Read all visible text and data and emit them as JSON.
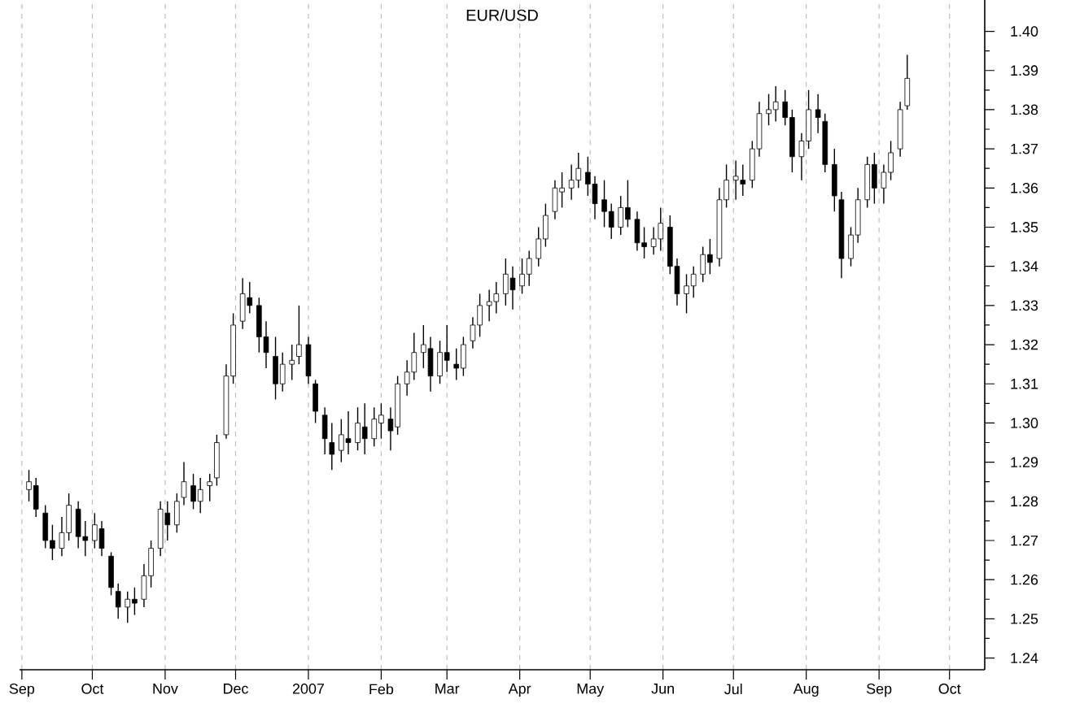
{
  "chart_data": {
    "type": "candlestick",
    "title": "EUR/USD",
    "color": "#000000",
    "grid": "x",
    "xlim": [
      "2006-08-31",
      "2007-10-16"
    ],
    "ylim": [
      1.237,
      1.408
    ],
    "xticks": [
      {
        "value": "2006-09-01",
        "label": "Sep"
      },
      {
        "value": "2006-10-01",
        "label": "Oct"
      },
      {
        "value": "2006-11-01",
        "label": "Nov"
      },
      {
        "value": "2006-12-01",
        "label": "Dec"
      },
      {
        "value": "2007-01-01",
        "label": "2007"
      },
      {
        "value": "2007-02-01",
        "label": "Feb"
      },
      {
        "value": "2007-03-01",
        "label": "Mar"
      },
      {
        "value": "2007-04-01",
        "label": "Apr"
      },
      {
        "value": "2007-05-01",
        "label": "May"
      },
      {
        "value": "2007-06-01",
        "label": "Jun"
      },
      {
        "value": "2007-07-01",
        "label": "Jul"
      },
      {
        "value": "2007-08-01",
        "label": "Aug"
      },
      {
        "value": "2007-09-01",
        "label": "Sep"
      },
      {
        "value": "2007-10-01",
        "label": "Oct"
      }
    ],
    "yticks": [
      {
        "value": 1.24,
        "label": "1.24"
      },
      {
        "value": 1.25,
        "label": "1.25"
      },
      {
        "value": 1.26,
        "label": "1.26"
      },
      {
        "value": 1.27,
        "label": "1.27"
      },
      {
        "value": 1.28,
        "label": "1.28"
      },
      {
        "value": 1.29,
        "label": "1.29"
      },
      {
        "value": 1.3,
        "label": "1.30"
      },
      {
        "value": 1.31,
        "label": "1.31"
      },
      {
        "value": 1.32,
        "label": "1.32"
      },
      {
        "value": 1.33,
        "label": "1.33"
      },
      {
        "value": 1.34,
        "label": "1.34"
      },
      {
        "value": 1.35,
        "label": "1.35"
      },
      {
        "value": 1.36,
        "label": "1.36"
      },
      {
        "value": 1.37,
        "label": "1.37"
      },
      {
        "value": 1.38,
        "label": "1.38"
      },
      {
        "value": 1.39,
        "label": "1.39"
      },
      {
        "value": 1.4,
        "label": "1.40"
      }
    ],
    "x": [
      "2006-09-04",
      "2006-09-07",
      "2006-09-11",
      "2006-09-14",
      "2006-09-18",
      "2006-09-21",
      "2006-09-25",
      "2006-09-28",
      "2006-10-02",
      "2006-10-05",
      "2006-10-09",
      "2006-10-12",
      "2006-10-16",
      "2006-10-19",
      "2006-10-23",
      "2006-10-26",
      "2006-10-30",
      "2006-11-02",
      "2006-11-06",
      "2006-11-09",
      "2006-11-13",
      "2006-11-16",
      "2006-11-20",
      "2006-11-23",
      "2006-11-27",
      "2006-11-30",
      "2006-12-04",
      "2006-12-07",
      "2006-12-11",
      "2006-12-14",
      "2006-12-18",
      "2006-12-21",
      "2006-12-25",
      "2006-12-28",
      "2007-01-01",
      "2007-01-04",
      "2007-01-08",
      "2007-01-11",
      "2007-01-15",
      "2007-01-18",
      "2007-01-22",
      "2007-01-25",
      "2007-01-29",
      "2007-02-01",
      "2007-02-05",
      "2007-02-08",
      "2007-02-12",
      "2007-02-15",
      "2007-02-19",
      "2007-02-22",
      "2007-02-26",
      "2007-03-01",
      "2007-03-05",
      "2007-03-08",
      "2007-03-12",
      "2007-03-15",
      "2007-03-19",
      "2007-03-22",
      "2007-03-26",
      "2007-03-29",
      "2007-04-02",
      "2007-04-05",
      "2007-04-09",
      "2007-04-12",
      "2007-04-16",
      "2007-04-19",
      "2007-04-23",
      "2007-04-26",
      "2007-04-30",
      "2007-05-03",
      "2007-05-07",
      "2007-05-10",
      "2007-05-14",
      "2007-05-17",
      "2007-05-21",
      "2007-05-24",
      "2007-05-28",
      "2007-05-31",
      "2007-06-04",
      "2007-06-07",
      "2007-06-11",
      "2007-06-14",
      "2007-06-18",
      "2007-06-21",
      "2007-06-25",
      "2007-06-28",
      "2007-07-02",
      "2007-07-05",
      "2007-07-09",
      "2007-07-12",
      "2007-07-16",
      "2007-07-19",
      "2007-07-23",
      "2007-07-26",
      "2007-07-30",
      "2007-08-02",
      "2007-08-06",
      "2007-08-09",
      "2007-08-13",
      "2007-08-16",
      "2007-08-20",
      "2007-08-23",
      "2007-08-27",
      "2007-08-30",
      "2007-09-03",
      "2007-09-06",
      "2007-09-10",
      "2007-09-13"
    ],
    "ohlc": [
      [
        1.283,
        1.288,
        1.28,
        1.285
      ],
      [
        1.284,
        1.286,
        1.276,
        1.278
      ],
      [
        1.277,
        1.279,
        1.268,
        1.27
      ],
      [
        1.27,
        1.274,
        1.265,
        1.268
      ],
      [
        1.268,
        1.276,
        1.266,
        1.272
      ],
      [
        1.272,
        1.282,
        1.27,
        1.279
      ],
      [
        1.278,
        1.28,
        1.268,
        1.271
      ],
      [
        1.271,
        1.275,
        1.266,
        1.27
      ],
      [
        1.27,
        1.277,
        1.268,
        1.274
      ],
      [
        1.273,
        1.275,
        1.266,
        1.268
      ],
      [
        1.266,
        1.267,
        1.256,
        1.258
      ],
      [
        1.257,
        1.259,
        1.25,
        1.253
      ],
      [
        1.253,
        1.257,
        1.249,
        1.255
      ],
      [
        1.255,
        1.258,
        1.251,
        1.254
      ],
      [
        1.255,
        1.264,
        1.253,
        1.261
      ],
      [
        1.261,
        1.27,
        1.258,
        1.268
      ],
      [
        1.268,
        1.28,
        1.266,
        1.278
      ],
      [
        1.277,
        1.28,
        1.27,
        1.274
      ],
      [
        1.274,
        1.282,
        1.272,
        1.28
      ],
      [
        1.281,
        1.29,
        1.279,
        1.285
      ],
      [
        1.284,
        1.287,
        1.278,
        1.28
      ],
      [
        1.28,
        1.286,
        1.277,
        1.283
      ],
      [
        1.284,
        1.287,
        1.28,
        1.285
      ],
      [
        1.286,
        1.297,
        1.284,
        1.295
      ],
      [
        1.297,
        1.315,
        1.296,
        1.312
      ],
      [
        1.312,
        1.328,
        1.31,
        1.325
      ],
      [
        1.326,
        1.337,
        1.324,
        1.333
      ],
      [
        1.332,
        1.336,
        1.328,
        1.33
      ],
      [
        1.33,
        1.332,
        1.318,
        1.322
      ],
      [
        1.322,
        1.326,
        1.314,
        1.318
      ],
      [
        1.317,
        1.322,
        1.306,
        1.31
      ],
      [
        1.31,
        1.318,
        1.308,
        1.315
      ],
      [
        1.315,
        1.32,
        1.311,
        1.316
      ],
      [
        1.317,
        1.33,
        1.315,
        1.32
      ],
      [
        1.32,
        1.322,
        1.31,
        1.312
      ],
      [
        1.31,
        1.311,
        1.3,
        1.303
      ],
      [
        1.302,
        1.304,
        1.292,
        1.296
      ],
      [
        1.295,
        1.3,
        1.288,
        1.292
      ],
      [
        1.293,
        1.301,
        1.29,
        1.297
      ],
      [
        1.296,
        1.303,
        1.292,
        1.295
      ],
      [
        1.295,
        1.304,
        1.293,
        1.3
      ],
      [
        1.299,
        1.305,
        1.292,
        1.296
      ],
      [
        1.296,
        1.304,
        1.294,
        1.301
      ],
      [
        1.3,
        1.305,
        1.296,
        1.302
      ],
      [
        1.301,
        1.304,
        1.293,
        1.298
      ],
      [
        1.299,
        1.312,
        1.297,
        1.31
      ],
      [
        1.31,
        1.316,
        1.307,
        1.313
      ],
      [
        1.313,
        1.323,
        1.311,
        1.318
      ],
      [
        1.318,
        1.325,
        1.314,
        1.32
      ],
      [
        1.319,
        1.322,
        1.308,
        1.312
      ],
      [
        1.312,
        1.321,
        1.31,
        1.318
      ],
      [
        1.318,
        1.325,
        1.313,
        1.316
      ],
      [
        1.315,
        1.319,
        1.311,
        1.314
      ],
      [
        1.314,
        1.322,
        1.312,
        1.32
      ],
      [
        1.321,
        1.327,
        1.319,
        1.325
      ],
      [
        1.325,
        1.333,
        1.322,
        1.33
      ],
      [
        1.33,
        1.334,
        1.326,
        1.331
      ],
      [
        1.331,
        1.336,
        1.328,
        1.333
      ],
      [
        1.333,
        1.342,
        1.33,
        1.338
      ],
      [
        1.337,
        1.34,
        1.329,
        1.334
      ],
      [
        1.335,
        1.342,
        1.333,
        1.338
      ],
      [
        1.338,
        1.344,
        1.335,
        1.342
      ],
      [
        1.342,
        1.35,
        1.34,
        1.347
      ],
      [
        1.347,
        1.356,
        1.345,
        1.353
      ],
      [
        1.354,
        1.362,
        1.352,
        1.36
      ],
      [
        1.359,
        1.364,
        1.355,
        1.36
      ],
      [
        1.36,
        1.366,
        1.357,
        1.362
      ],
      [
        1.362,
        1.369,
        1.36,
        1.365
      ],
      [
        1.364,
        1.368,
        1.358,
        1.361
      ],
      [
        1.361,
        1.363,
        1.352,
        1.356
      ],
      [
        1.357,
        1.362,
        1.35,
        1.354
      ],
      [
        1.354,
        1.356,
        1.347,
        1.35
      ],
      [
        1.35,
        1.358,
        1.348,
        1.355
      ],
      [
        1.355,
        1.362,
        1.35,
        1.352
      ],
      [
        1.352,
        1.354,
        1.344,
        1.346
      ],
      [
        1.346,
        1.35,
        1.342,
        1.345
      ],
      [
        1.345,
        1.35,
        1.343,
        1.347
      ],
      [
        1.347,
        1.355,
        1.344,
        1.351
      ],
      [
        1.35,
        1.353,
        1.338,
        1.34
      ],
      [
        1.34,
        1.342,
        1.33,
        1.333
      ],
      [
        1.333,
        1.338,
        1.328,
        1.335
      ],
      [
        1.335,
        1.34,
        1.332,
        1.338
      ],
      [
        1.338,
        1.345,
        1.336,
        1.343
      ],
      [
        1.343,
        1.347,
        1.338,
        1.341
      ],
      [
        1.342,
        1.36,
        1.34,
        1.357
      ],
      [
        1.357,
        1.366,
        1.355,
        1.362
      ],
      [
        1.362,
        1.367,
        1.357,
        1.363
      ],
      [
        1.362,
        1.366,
        1.358,
        1.361
      ],
      [
        1.362,
        1.372,
        1.36,
        1.37
      ],
      [
        1.37,
        1.382,
        1.368,
        1.379
      ],
      [
        1.379,
        1.384,
        1.376,
        1.38
      ],
      [
        1.38,
        1.386,
        1.377,
        1.382
      ],
      [
        1.382,
        1.385,
        1.376,
        1.378
      ],
      [
        1.378,
        1.38,
        1.364,
        1.368
      ],
      [
        1.368,
        1.374,
        1.362,
        1.372
      ],
      [
        1.372,
        1.385,
        1.37,
        1.38
      ],
      [
        1.38,
        1.384,
        1.374,
        1.378
      ],
      [
        1.377,
        1.379,
        1.364,
        1.366
      ],
      [
        1.366,
        1.37,
        1.354,
        1.358
      ],
      [
        1.357,
        1.359,
        1.337,
        1.342
      ],
      [
        1.342,
        1.35,
        1.34,
        1.348
      ],
      [
        1.348,
        1.36,
        1.346,
        1.357
      ],
      [
        1.357,
        1.368,
        1.355,
        1.366
      ],
      [
        1.366,
        1.369,
        1.356,
        1.36
      ],
      [
        1.36,
        1.366,
        1.356,
        1.364
      ],
      [
        1.364,
        1.372,
        1.362,
        1.369
      ],
      [
        1.37,
        1.382,
        1.368,
        1.38
      ],
      [
        1.381,
        1.394,
        1.38,
        1.388
      ]
    ]
  }
}
